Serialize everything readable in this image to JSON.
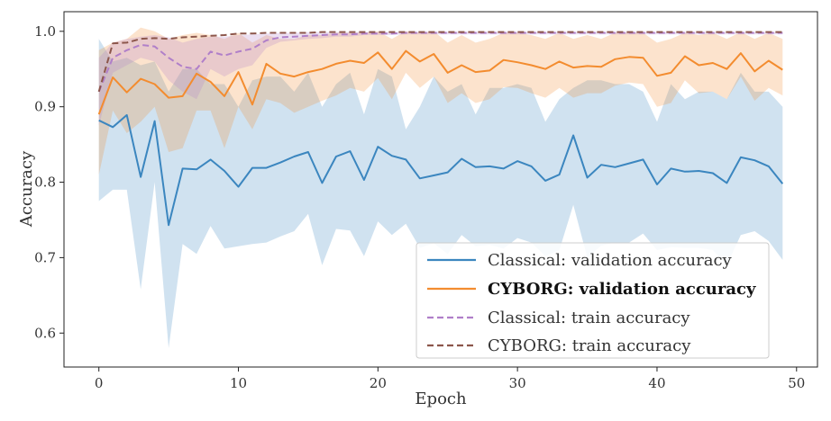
{
  "chart_data": {
    "type": "line",
    "xlabel": "Epoch",
    "ylabel": "Accuracy",
    "xlim": [
      -2.5,
      51.5
    ],
    "ylim": [
      0.555,
      1.026
    ],
    "xticks": [
      0,
      10,
      20,
      30,
      40,
      50
    ],
    "yticks": [
      0.6,
      0.7,
      0.8,
      0.9,
      1.0
    ],
    "ytick_labels": [
      "0.6",
      "0.7",
      "0.8",
      "0.9",
      "1.0"
    ],
    "grid": false,
    "legend_position": "bottom-right",
    "x": [
      0,
      1,
      2,
      3,
      4,
      5,
      6,
      7,
      8,
      9,
      10,
      11,
      12,
      13,
      14,
      15,
      16,
      17,
      18,
      19,
      20,
      21,
      22,
      23,
      24,
      25,
      26,
      27,
      28,
      29,
      30,
      31,
      32,
      33,
      34,
      35,
      36,
      37,
      38,
      39,
      40,
      41,
      42,
      43,
      44,
      45,
      46,
      47,
      48,
      49
    ],
    "series": [
      {
        "name": "Classical: validation accuracy",
        "color": "#3b86bf",
        "style": "solid",
        "bold": false,
        "values": [
          0.882,
          0.873,
          0.889,
          0.807,
          0.881,
          0.743,
          0.818,
          0.817,
          0.83,
          0.815,
          0.794,
          0.819,
          0.819,
          0.826,
          0.834,
          0.84,
          0.799,
          0.834,
          0.841,
          0.803,
          0.847,
          0.835,
          0.83,
          0.805,
          0.809,
          0.813,
          0.831,
          0.82,
          0.821,
          0.818,
          0.828,
          0.821,
          0.802,
          0.81,
          0.862,
          0.806,
          0.823,
          0.82,
          0.825,
          0.83,
          0.797,
          0.818,
          0.814,
          0.815,
          0.812,
          0.799,
          0.833,
          0.829,
          0.821,
          0.798
        ],
        "band_upper": [
          0.99,
          0.96,
          0.965,
          0.955,
          0.96,
          0.92,
          0.95,
          0.95,
          0.93,
          0.93,
          0.9,
          0.935,
          0.94,
          0.94,
          0.92,
          0.945,
          0.9,
          0.93,
          0.945,
          0.89,
          0.95,
          0.94,
          0.87,
          0.9,
          0.94,
          0.92,
          0.93,
          0.89,
          0.925,
          0.925,
          0.93,
          0.925,
          0.88,
          0.91,
          0.925,
          0.935,
          0.935,
          0.93,
          0.93,
          0.92,
          0.88,
          0.93,
          0.91,
          0.92,
          0.92,
          0.91,
          0.945,
          0.92,
          0.92,
          0.9
        ],
        "band_lower": [
          0.775,
          0.79,
          0.79,
          0.658,
          0.8,
          0.58,
          0.718,
          0.705,
          0.742,
          0.712,
          0.715,
          0.718,
          0.72,
          0.728,
          0.735,
          0.758,
          0.69,
          0.738,
          0.736,
          0.702,
          0.748,
          0.73,
          0.745,
          0.713,
          0.719,
          0.705,
          0.73,
          0.715,
          0.717,
          0.712,
          0.726,
          0.72,
          0.702,
          0.71,
          0.77,
          0.7,
          0.716,
          0.72,
          0.72,
          0.732,
          0.71,
          0.714,
          0.713,
          0.713,
          0.71,
          0.69,
          0.73,
          0.735,
          0.722,
          0.697
        ]
      },
      {
        "name": "CYBORG: validation accuracy",
        "color": "#f38c2f",
        "style": "solid",
        "bold": true,
        "values": [
          0.89,
          0.939,
          0.919,
          0.937,
          0.93,
          0.912,
          0.914,
          0.944,
          0.933,
          0.914,
          0.946,
          0.903,
          0.957,
          0.944,
          0.94,
          0.946,
          0.95,
          0.957,
          0.961,
          0.958,
          0.972,
          0.95,
          0.974,
          0.96,
          0.97,
          0.945,
          0.955,
          0.946,
          0.948,
          0.962,
          0.959,
          0.955,
          0.95,
          0.96,
          0.952,
          0.954,
          0.953,
          0.963,
          0.966,
          0.965,
          0.941,
          0.945,
          0.967,
          0.955,
          0.958,
          0.95,
          0.971,
          0.947,
          0.961,
          0.949
        ],
        "band_upper": [
          0.975,
          0.985,
          0.99,
          1.005,
          1.0,
          0.99,
          0.995,
          0.998,
          0.995,
          0.99,
          0.998,
          0.985,
          0.995,
          0.99,
          0.99,
          0.995,
          0.995,
          0.998,
          0.998,
          0.998,
          1.0,
          0.99,
          1.0,
          0.998,
          1.0,
          0.985,
          0.995,
          0.985,
          0.99,
          0.998,
          0.998,
          0.995,
          0.99,
          0.998,
          0.99,
          0.995,
          0.99,
          0.998,
          0.998,
          0.998,
          0.985,
          0.99,
          0.998,
          0.995,
          0.998,
          0.99,
          0.999,
          0.99,
          0.998,
          0.99
        ],
        "band_lower": [
          0.81,
          0.895,
          0.865,
          0.88,
          0.9,
          0.84,
          0.845,
          0.895,
          0.895,
          0.845,
          0.9,
          0.87,
          0.91,
          0.905,
          0.892,
          0.9,
          0.908,
          0.915,
          0.925,
          0.92,
          0.938,
          0.91,
          0.945,
          0.925,
          0.94,
          0.905,
          0.918,
          0.905,
          0.91,
          0.926,
          0.925,
          0.918,
          0.912,
          0.925,
          0.912,
          0.918,
          0.918,
          0.928,
          0.932,
          0.93,
          0.9,
          0.905,
          0.935,
          0.918,
          0.92,
          0.91,
          0.94,
          0.908,
          0.925,
          0.915
        ]
      },
      {
        "name": "Classical: train accuracy",
        "color": "#b07fc9",
        "style": "dashed",
        "bold": false,
        "values": [
          0.92,
          0.965,
          0.975,
          0.982,
          0.98,
          0.965,
          0.953,
          0.95,
          0.973,
          0.968,
          0.973,
          0.977,
          0.988,
          0.992,
          0.993,
          0.994,
          0.995,
          0.996,
          0.996,
          0.997,
          0.997,
          0.997,
          0.998,
          0.998,
          0.998,
          0.998,
          0.998,
          0.998,
          0.998,
          0.998,
          0.998,
          0.998,
          0.998,
          0.998,
          0.998,
          0.998,
          0.998,
          0.998,
          0.998,
          0.998,
          0.998,
          0.998,
          0.998,
          0.998,
          0.998,
          0.998,
          0.998,
          0.998,
          0.998,
          0.998
        ],
        "band_upper": [
          0.965,
          0.985,
          0.99,
          0.993,
          0.995,
          0.992,
          0.985,
          0.99,
          0.993,
          0.993,
          0.995,
          0.996,
          0.997,
          0.998,
          0.998,
          0.999,
          0.999,
          0.999,
          0.999,
          0.999,
          0.999,
          0.999,
          0.999,
          0.999,
          0.999,
          0.999,
          0.999,
          0.999,
          0.999,
          0.999,
          0.999,
          0.999,
          0.999,
          0.999,
          0.999,
          0.999,
          0.999,
          0.999,
          0.999,
          0.999,
          0.999,
          0.999,
          0.999,
          0.999,
          0.999,
          0.999,
          0.999,
          0.999,
          0.999,
          0.999
        ],
        "band_lower": [
          0.875,
          0.945,
          0.955,
          0.965,
          0.96,
          0.935,
          0.92,
          0.91,
          0.95,
          0.94,
          0.95,
          0.955,
          0.978,
          0.986,
          0.988,
          0.99,
          0.991,
          0.993,
          0.993,
          0.995,
          0.995,
          0.995,
          0.996,
          0.996,
          0.996,
          0.996,
          0.996,
          0.996,
          0.996,
          0.996,
          0.996,
          0.996,
          0.996,
          0.996,
          0.996,
          0.996,
          0.996,
          0.996,
          0.996,
          0.996,
          0.996,
          0.996,
          0.996,
          0.996,
          0.996,
          0.996,
          0.996,
          0.996,
          0.996,
          0.996
        ]
      },
      {
        "name": "CYBORG: train accuracy",
        "color": "#8c564b",
        "style": "dashed",
        "bold": false,
        "values": [
          0.92,
          0.984,
          0.985,
          0.99,
          0.991,
          0.99,
          0.992,
          0.993,
          0.994,
          0.995,
          0.997,
          0.997,
          0.998,
          0.998,
          0.998,
          0.998,
          0.999,
          0.999,
          0.999,
          0.999,
          0.999,
          0.999,
          0.999,
          0.999,
          0.999,
          0.999,
          0.999,
          0.999,
          0.999,
          0.999,
          0.999,
          0.999,
          0.999,
          0.999,
          0.999,
          0.999,
          0.999,
          0.999,
          0.999,
          0.999,
          0.999,
          0.999,
          0.999,
          0.999,
          0.999,
          0.999,
          0.999,
          0.999,
          0.999,
          0.999
        ],
        "band_upper": null,
        "band_lower": null
      }
    ]
  }
}
